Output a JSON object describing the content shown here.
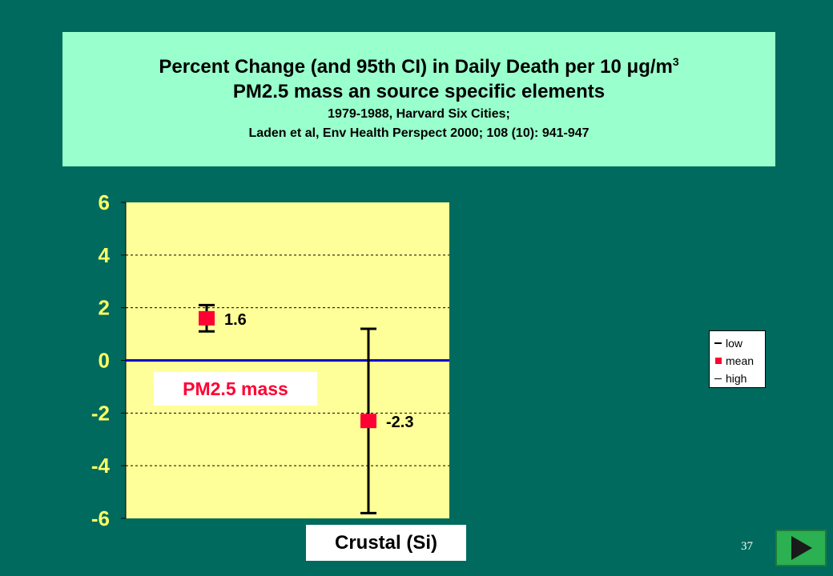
{
  "title": {
    "line1": "Percent Change (and 95th CI) in Daily Death per 10 ",
    "unit_mu": "μ",
    "unit_g": "g/m",
    "unit_sup": "3",
    "line2": "PM2.5 mass an source specific elements",
    "line3": "1979-1988, Harvard Six Cities;",
    "line4": "Laden et al, Env Health Perspect 2000; 108 (10): 941-947"
  },
  "chart_data": {
    "type": "error-bar",
    "categories": [
      "PM2.5 mass",
      "Crustal (Si)"
    ],
    "series": [
      {
        "name": "low",
        "values": [
          1.1,
          -5.8
        ]
      },
      {
        "name": "mean",
        "values": [
          1.6,
          -2.3
        ]
      },
      {
        "name": "high",
        "values": [
          2.1,
          1.2
        ]
      }
    ],
    "data_labels": [
      "1.6",
      "-2.3"
    ],
    "ylim": [
      -6,
      6
    ],
    "yticks": [
      "6",
      "4",
      "2",
      "0",
      "-2",
      "-4",
      "-6"
    ],
    "grid": true,
    "legend_position": "right",
    "colors": {
      "plot_bg": "#ffff99",
      "mean": "#ff0033",
      "zero_line": "#0000cc",
      "errorbar": "#000000",
      "tick_label": "#ffff66"
    }
  },
  "labels": {
    "pm_mass": "PM2.5 mass",
    "crustal": "Crustal (Si)"
  },
  "legend": {
    "low": "low",
    "mean": "mean",
    "high": "high"
  },
  "page_number": "37",
  "next_button_icon": "play-next-icon",
  "colors": {
    "background": "#006a5e",
    "title_bg": "#99ffcc",
    "button": "#2bb052"
  }
}
